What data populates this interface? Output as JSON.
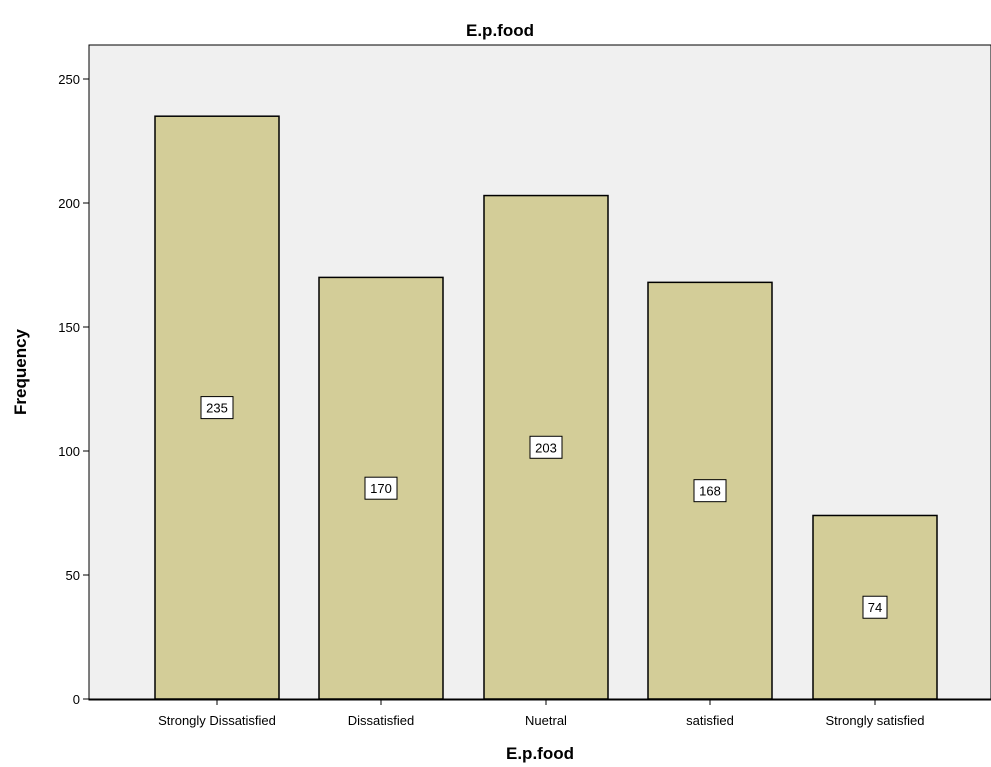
{
  "chart_data": {
    "type": "bar",
    "title": "E.p.food",
    "xlabel": "E.p.food",
    "ylabel": "Frequency",
    "categories": [
      "Strongly Dissatisfied",
      "Dissatisfied",
      "Nuetral",
      "satisfied",
      "Strongly satisfied"
    ],
    "values": [
      235,
      170,
      203,
      168,
      74
    ],
    "data_labels": [
      "235",
      "170",
      "203",
      "168",
      "74"
    ],
    "ylim": [
      0,
      260
    ],
    "yticks": [
      0,
      50,
      100,
      150,
      200,
      250
    ],
    "ytick_labels": [
      "0",
      "50",
      "100",
      "150",
      "200",
      "250"
    ],
    "grid": false,
    "colors": {
      "bar_fill": "#d3cd98",
      "bar_stroke": "#000000",
      "plot_background": "#f0f0f0",
      "label_box_fill": "#ffffff"
    }
  }
}
